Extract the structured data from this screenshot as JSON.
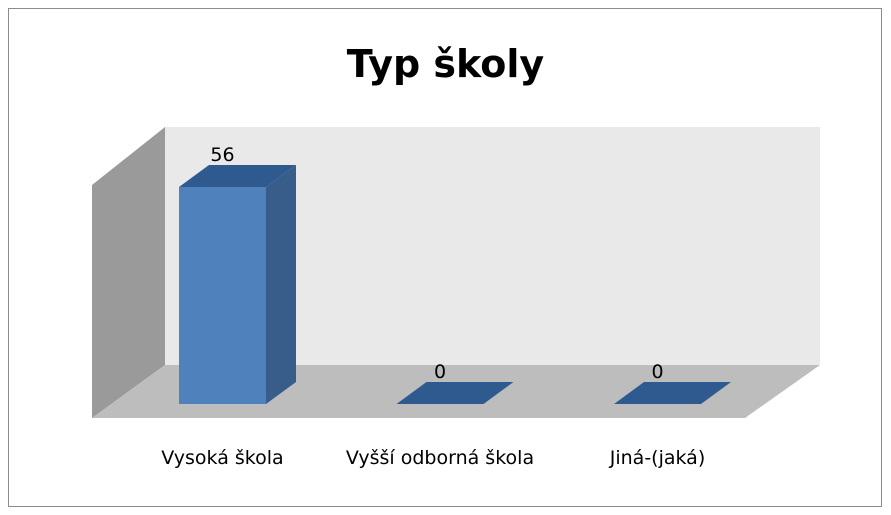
{
  "chart_data": {
    "type": "bar3d",
    "title": "Typ školy",
    "categories": [
      "Vysoká škola",
      "Vyšší odborná škola",
      "Jiná-(jaká)"
    ],
    "values": [
      56,
      0,
      0
    ],
    "color": "#4f81bd"
  }
}
